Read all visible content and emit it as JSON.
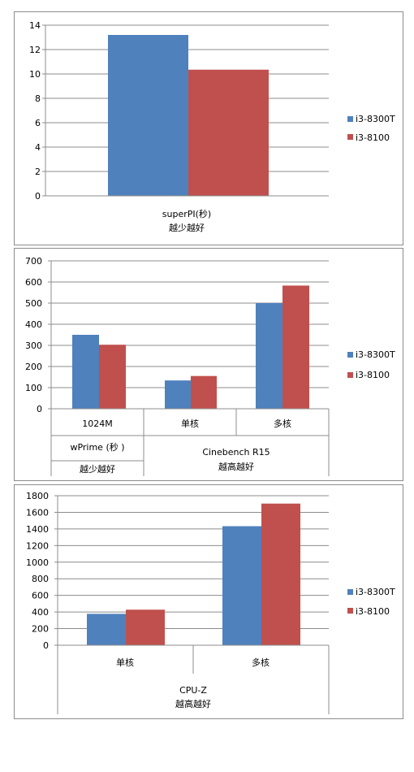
{
  "chart_data": [
    {
      "type": "bar",
      "categories": [
        ""
      ],
      "series": [
        {
          "name": "i3-8300T",
          "values": [
            13.2
          ]
        },
        {
          "name": "i3-8100",
          "values": [
            10.35
          ]
        }
      ],
      "ylim": [
        0,
        14
      ],
      "yticks": [
        0,
        2,
        4,
        6,
        8,
        10,
        12,
        14
      ],
      "group_labels": [
        "superPI(秒)"
      ],
      "note": "越少越好",
      "grid": true,
      "legend": "right"
    },
    {
      "type": "bar",
      "categories": [
        "1024M",
        "单核",
        "多核"
      ],
      "series": [
        {
          "name": "i3-8300T",
          "values": [
            350,
            134,
            500
          ]
        },
        {
          "name": "i3-8100",
          "values": [
            303,
            155,
            583
          ]
        }
      ],
      "ylim": [
        0,
        700
      ],
      "yticks": [
        0,
        100,
        200,
        300,
        400,
        500,
        600,
        700
      ],
      "group_labels": [
        {
          "label": "wPrime (秒 )",
          "note": "越少越好"
        },
        {
          "label": "Cinebench R15",
          "note": "越高越好"
        }
      ],
      "grid": true,
      "legend": "right"
    },
    {
      "type": "bar",
      "categories": [
        "单核",
        "多核"
      ],
      "series": [
        {
          "name": "i3-8300T",
          "values": [
            378,
            1433
          ]
        },
        {
          "name": "i3-8100",
          "values": [
            428,
            1705
          ]
        }
      ],
      "ylim": [
        0,
        1800
      ],
      "yticks": [
        0,
        200,
        400,
        600,
        800,
        1000,
        1200,
        1400,
        1600,
        1800
      ],
      "group_labels": [
        "CPU-Z"
      ],
      "note": "越高越好",
      "grid": true,
      "legend": "right"
    }
  ],
  "colors": {
    "i3-8300T": "#4F81BD",
    "i3-8100": "#C0504D",
    "grid": "#8c8c8c",
    "axis": "#8c8c8c"
  }
}
